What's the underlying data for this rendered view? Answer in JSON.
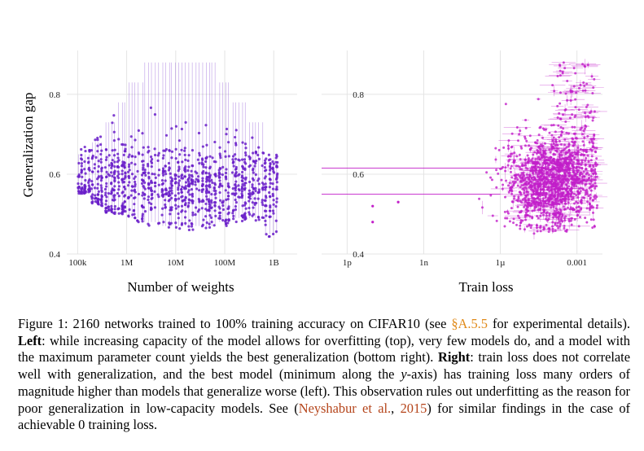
{
  "figure": {
    "left_panel": {
      "ylabel": "Generalization gap",
      "xlabel": "Number of weights",
      "yticks": [
        "0.4",
        "0.6",
        "0.8"
      ],
      "xticks": [
        "100k",
        "1M",
        "10M",
        "100M",
        "1B"
      ],
      "point_color": "#6a1fc9"
    },
    "right_panel": {
      "xlabel": "Train loss",
      "yticks": [
        "0.4",
        "0.6",
        "0.8"
      ],
      "xticks": [
        "1p",
        "1n",
        "1µ",
        "0.001"
      ],
      "point_color": "#c21ec9"
    }
  },
  "chart_data": [
    {
      "type": "scatter",
      "xlabel": "Number of weights",
      "ylabel": "Generalization gap",
      "x_scale": "log",
      "xlim": [
        60000,
        3000000000
      ],
      "ylim": [
        0.4,
        0.91
      ],
      "grid": true,
      "clusters": [
        {
          "x": 150000,
          "y_range": [
            0.55,
            0.67
          ]
        },
        {
          "x": 250000,
          "y_range": [
            0.52,
            0.7
          ]
        },
        {
          "x": 450000,
          "y_range": [
            0.5,
            0.75
          ]
        },
        {
          "x": 800000,
          "y_range": [
            0.5,
            0.8
          ]
        },
        {
          "x": 1500000,
          "y_range": [
            0.48,
            0.85
          ]
        },
        {
          "x": 3000000,
          "y_range": [
            0.47,
            0.9
          ]
        },
        {
          "x": 6000000,
          "y_range": [
            0.46,
            0.9
          ]
        },
        {
          "x": 12000000,
          "y_range": [
            0.46,
            0.9
          ]
        },
        {
          "x": 25000000,
          "y_range": [
            0.46,
            0.9
          ]
        },
        {
          "x": 50000000,
          "y_range": [
            0.46,
            0.9
          ]
        },
        {
          "x": 100000000,
          "y_range": [
            0.47,
            0.85
          ]
        },
        {
          "x": 200000000,
          "y_range": [
            0.48,
            0.8
          ]
        },
        {
          "x": 400000000,
          "y_range": [
            0.48,
            0.75
          ]
        },
        {
          "x": 1000000000,
          "y_range": [
            0.44,
            0.65
          ]
        }
      ]
    },
    {
      "type": "scatter",
      "xlabel": "Train loss",
      "ylabel": "",
      "x_scale": "log",
      "xlim": [
        1e-13,
        0.01
      ],
      "ylim": [
        0.4,
        0.91
      ],
      "grid": true,
      "density_center": {
        "x": 0.0001,
        "y": 0.58
      },
      "outliers": [
        {
          "x": 1e-13,
          "y": 0.615,
          "x_err_to": 1e-06
        },
        {
          "x": 1e-13,
          "y": 0.55,
          "x_err_to": 1e-06
        },
        {
          "x": 1e-11,
          "y": 0.52
        },
        {
          "x": 1e-11,
          "y": 0.48
        },
        {
          "x": 1e-10,
          "y": 0.53
        }
      ]
    }
  ],
  "caption": {
    "p1": "Figure 1: 2160 networks trained to 100% training accuracy on CIFAR10 (see ",
    "ref1": "§A.5.5",
    "p2": " for experimental details). ",
    "left": "Left",
    "p3": ": while increasing capacity of the model allows for overfitting (top), very few models do, and a model with the maximum parameter count yields the best generalization (bottom right). ",
    "right": "Right",
    "p4": ": train loss does not correlate well with generalization, and the best model (minimum along the ",
    "yaxis": "y",
    "p5": "-axis) has training loss many orders of magnitude higher than models that generalize worse (left). This observation rules out underfitting as the reason for poor generalization in low-capacity models. See (",
    "cite_name": "Neyshabur et al.",
    "p6": ", ",
    "cite_year": "2015",
    "p7": ") for similar findings in the case of achievable 0 training loss."
  }
}
